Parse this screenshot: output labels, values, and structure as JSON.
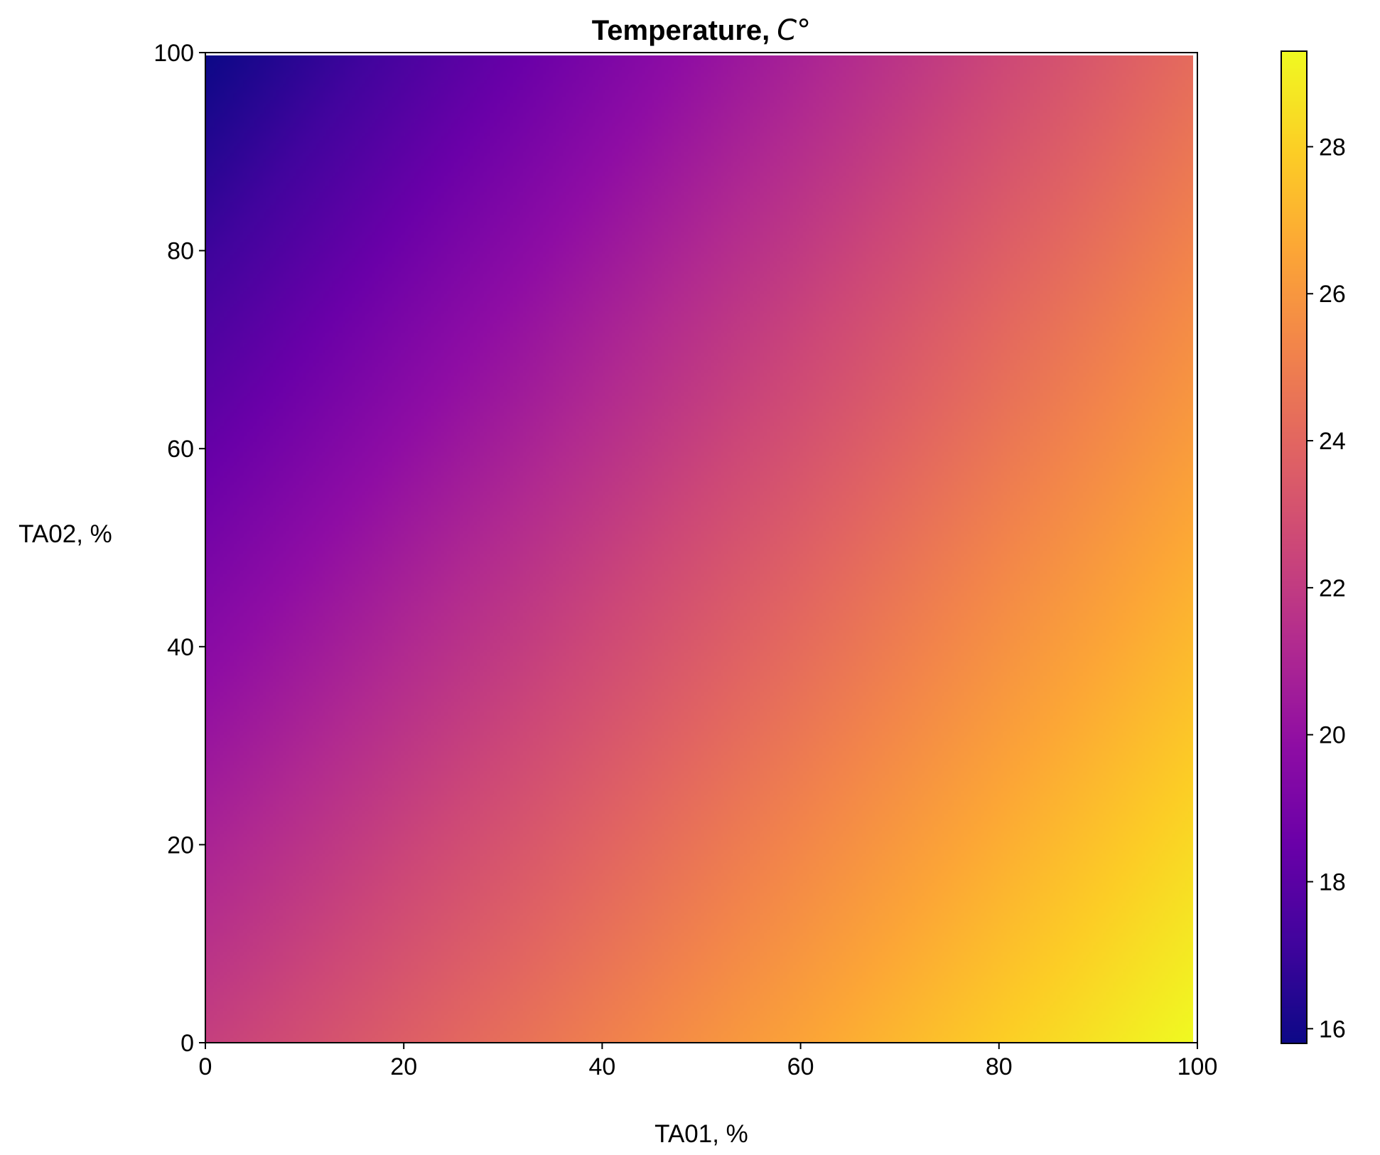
{
  "chart_data": {
    "type": "heatmap",
    "title": "Temperature,",
    "title_unit": "C°",
    "xlabel": "TA01, %",
    "ylabel": "TA02, %",
    "xlim": [
      0,
      100
    ],
    "ylim": [
      0,
      100
    ],
    "x_ticks": [
      0,
      20,
      40,
      60,
      80,
      100
    ],
    "y_ticks": [
      0,
      20,
      40,
      60,
      80,
      100
    ],
    "colormap": "plasma",
    "colorbar": {
      "range": [
        15.8,
        29.3
      ],
      "ticks": [
        16,
        18,
        20,
        22,
        24,
        26,
        28
      ]
    },
    "corner_values": {
      "x0_y0": 22.2,
      "x100_y0": 29.3,
      "x0_y100": 15.8,
      "x100_y100": 24.2
    },
    "grid": false
  }
}
